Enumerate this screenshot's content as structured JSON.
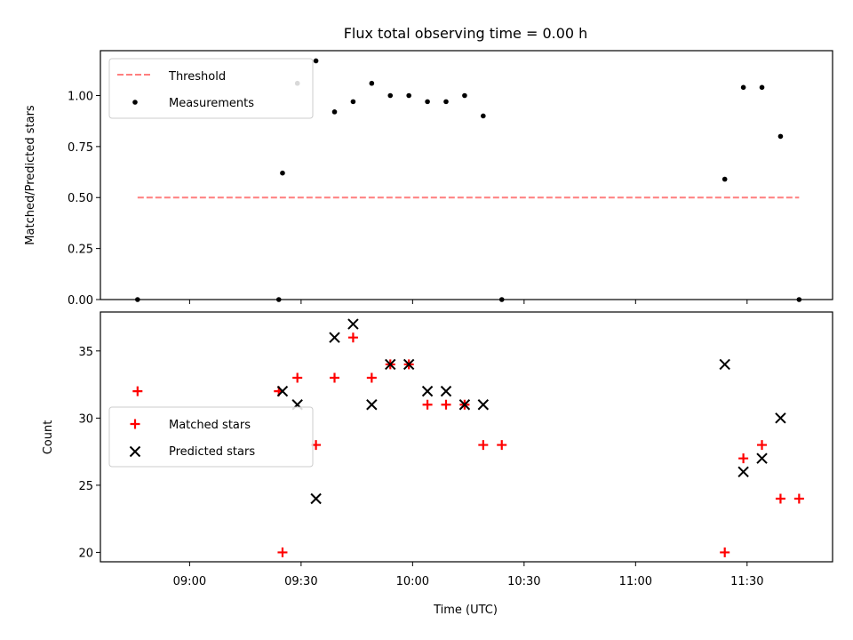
{
  "chart_data": [
    {
      "type": "scatter",
      "title": "Flux total observing time = 0.00 h",
      "xlabel": "",
      "ylabel": "Matched/Predicted stars",
      "x_unit": "time_of_day",
      "xlim": [
        "08:36",
        "11:53"
      ],
      "ylim": [
        0,
        1.22
      ],
      "yticks": [
        "0.00",
        "0.25",
        "0.50",
        "0.75",
        "1.00"
      ],
      "grid": false,
      "legend_position": "upper-left",
      "threshold": {
        "name": "Threshold",
        "value": 0.5,
        "x_range": [
          "08:46",
          "11:44"
        ],
        "color": "#ff7f7f",
        "style": "dashed"
      },
      "series": [
        {
          "name": "Measurements",
          "marker": "dot",
          "color": "#000000",
          "points": [
            {
              "x": "08:46",
              "y": 0.0
            },
            {
              "x": "09:24",
              "y": 0.0
            },
            {
              "x": "09:25",
              "y": 0.62
            },
            {
              "x": "09:29",
              "y": 1.06
            },
            {
              "x": "09:34",
              "y": 1.17
            },
            {
              "x": "09:39",
              "y": 0.92
            },
            {
              "x": "09:44",
              "y": 0.97
            },
            {
              "x": "09:49",
              "y": 1.06
            },
            {
              "x": "09:54",
              "y": 1.0
            },
            {
              "x": "09:59",
              "y": 1.0
            },
            {
              "x": "10:04",
              "y": 0.97
            },
            {
              "x": "10:09",
              "y": 0.97
            },
            {
              "x": "10:14",
              "y": 1.0
            },
            {
              "x": "10:19",
              "y": 0.9
            },
            {
              "x": "10:24",
              "y": 0.0
            },
            {
              "x": "11:24",
              "y": 0.59
            },
            {
              "x": "11:29",
              "y": 1.04
            },
            {
              "x": "11:34",
              "y": 1.04
            },
            {
              "x": "11:39",
              "y": 0.8
            },
            {
              "x": "11:44",
              "y": 0.0
            }
          ]
        }
      ]
    },
    {
      "type": "scatter",
      "title": "",
      "xlabel": "Time (UTC)",
      "ylabel": "Count",
      "x_unit": "time_of_day",
      "xlim": [
        "08:36",
        "11:53"
      ],
      "ylim": [
        19.3,
        37.9
      ],
      "xticks": [
        "09:00",
        "09:30",
        "10:00",
        "10:30",
        "11:00",
        "11:30"
      ],
      "yticks": [
        "20",
        "25",
        "30",
        "35"
      ],
      "grid": false,
      "legend_position": "center-left",
      "series": [
        {
          "name": "Matched stars",
          "marker": "plus",
          "color": "#ff0000",
          "points": [
            {
              "x": "08:46",
              "y": 32
            },
            {
              "x": "09:24",
              "y": 32
            },
            {
              "x": "09:25",
              "y": 20
            },
            {
              "x": "09:29",
              "y": 33
            },
            {
              "x": "09:34",
              "y": 28
            },
            {
              "x": "09:39",
              "y": 33
            },
            {
              "x": "09:44",
              "y": 36
            },
            {
              "x": "09:49",
              "y": 33
            },
            {
              "x": "09:54",
              "y": 34
            },
            {
              "x": "09:59",
              "y": 34
            },
            {
              "x": "10:04",
              "y": 31
            },
            {
              "x": "10:09",
              "y": 31
            },
            {
              "x": "10:14",
              "y": 31
            },
            {
              "x": "10:19",
              "y": 28
            },
            {
              "x": "10:24",
              "y": 28
            },
            {
              "x": "11:24",
              "y": 20
            },
            {
              "x": "11:29",
              "y": 27
            },
            {
              "x": "11:34",
              "y": 28
            },
            {
              "x": "11:39",
              "y": 24
            },
            {
              "x": "11:44",
              "y": 24
            }
          ]
        },
        {
          "name": "Predicted stars",
          "marker": "x",
          "color": "#000000",
          "points": [
            {
              "x": "09:25",
              "y": 32
            },
            {
              "x": "09:29",
              "y": 31
            },
            {
              "x": "09:34",
              "y": 24
            },
            {
              "x": "09:39",
              "y": 36
            },
            {
              "x": "09:44",
              "y": 37
            },
            {
              "x": "09:49",
              "y": 31
            },
            {
              "x": "09:54",
              "y": 34
            },
            {
              "x": "09:59",
              "y": 34
            },
            {
              "x": "10:04",
              "y": 32
            },
            {
              "x": "10:09",
              "y": 32
            },
            {
              "x": "10:14",
              "y": 31
            },
            {
              "x": "10:19",
              "y": 31
            },
            {
              "x": "11:24",
              "y": 34
            },
            {
              "x": "11:29",
              "y": 26
            },
            {
              "x": "11:34",
              "y": 27
            },
            {
              "x": "11:39",
              "y": 30
            }
          ]
        }
      ]
    }
  ]
}
